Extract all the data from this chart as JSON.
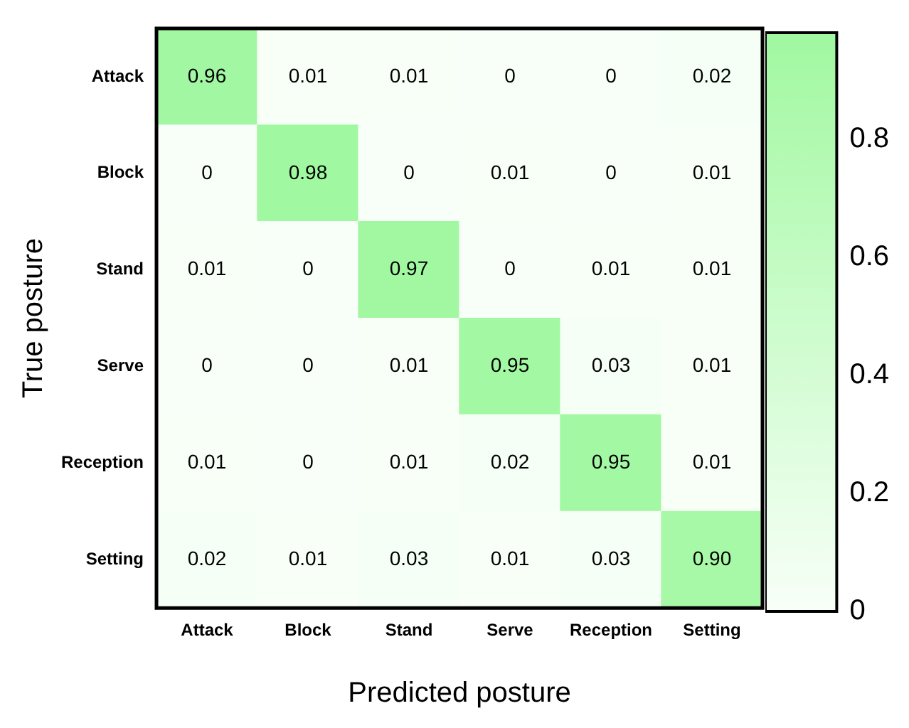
{
  "chart_data": {
    "type": "heatmap",
    "xlabel": "Predicted posture",
    "ylabel": "True posture",
    "categories": [
      "Attack",
      "Block",
      "Stand",
      "Serve",
      "Reception",
      "Setting"
    ],
    "y_categories": [
      "Attack",
      "Block",
      "Stand",
      "Serve",
      "Reception",
      "Setting"
    ],
    "cells": [
      [
        0.96,
        0.01,
        0.01,
        0,
        0,
        0.02
      ],
      [
        0,
        0.98,
        0,
        0.01,
        0,
        0.01
      ],
      [
        0.01,
        0,
        0.97,
        0,
        0.01,
        0.01
      ],
      [
        0,
        0,
        0.01,
        0.95,
        0.03,
        0.01
      ],
      [
        0.01,
        0,
        0.01,
        0.02,
        0.95,
        0.01
      ],
      [
        0.02,
        0.01,
        0.03,
        0.01,
        0.03,
        0.9
      ]
    ],
    "cell_labels": [
      [
        "0.96",
        "0.01",
        "0.01",
        "0",
        "0",
        "0.02"
      ],
      [
        "0",
        "0.98",
        "0",
        "0.01",
        "0",
        "0.01"
      ],
      [
        "0.01",
        "0",
        "0.97",
        "0",
        "0.01",
        "0.01"
      ],
      [
        "0",
        "0",
        "0.01",
        "0.95",
        "0.03",
        "0.01"
      ],
      [
        "0.01",
        "0",
        "0.01",
        "0.02",
        "0.95",
        "0.01"
      ],
      [
        "0.02",
        "0.01",
        "0.03",
        "0.01",
        "0.03",
        "0.90"
      ]
    ],
    "colors": [
      "#f8fff8",
      "#a0f8a0"
    ],
    "clim": [
      0,
      0.98
    ],
    "cticks": [
      0,
      0.2,
      0.4,
      0.6,
      0.8
    ]
  }
}
